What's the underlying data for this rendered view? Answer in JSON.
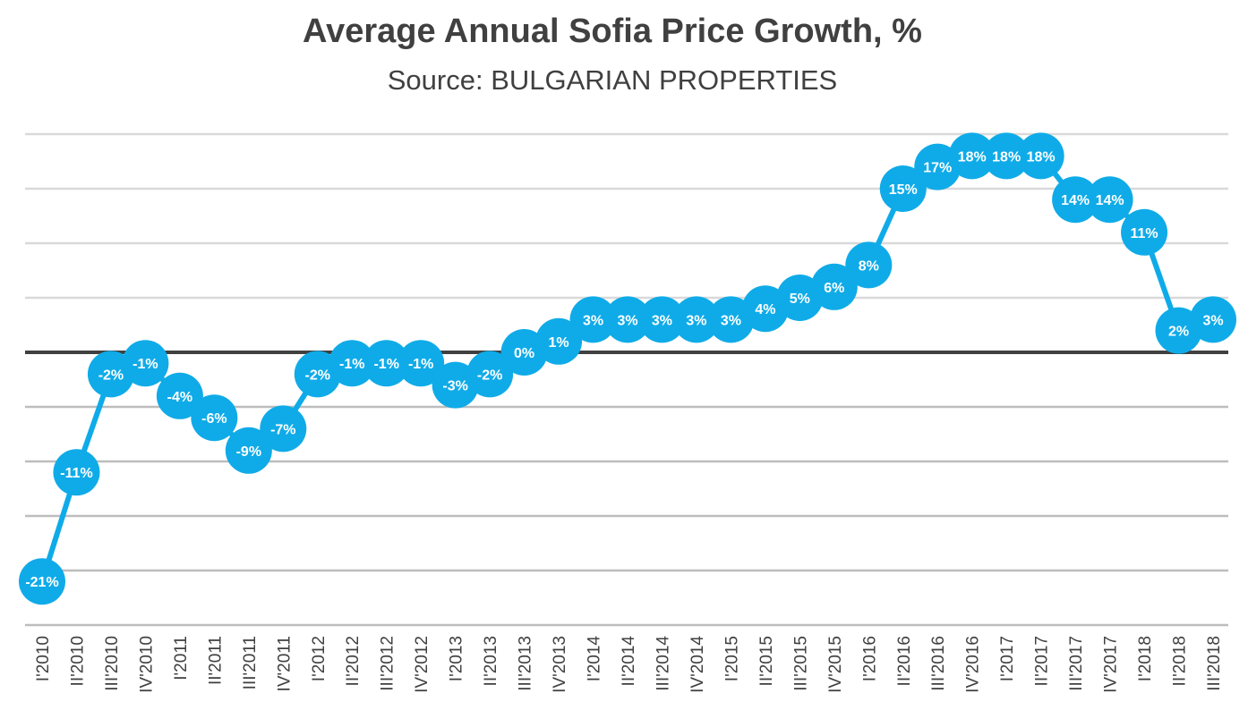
{
  "chart_data": {
    "type": "line",
    "title": "Average Annual Sofia Price Growth, %",
    "subtitle": "Source: BULGARIAN PROPERTIES",
    "xlabel": "",
    "ylabel": "",
    "ylim": [
      -25,
      20
    ],
    "grid": true,
    "legend": "none",
    "color": "#0fabe8",
    "categories": [
      "I'2010",
      "II'2010",
      "III'2010",
      "IV'2010",
      "I'2011",
      "II'2011",
      "III'2011",
      "IV'2011",
      "I'2012",
      "II'2012",
      "III'2012",
      "IV'2012",
      "I'2013",
      "II'2013",
      "III'2013",
      "IV'2013",
      "I'2014",
      "II'2014",
      "III'2014",
      "IV'2014",
      "I'2015",
      "II'2015",
      "III'2015",
      "IV'2015",
      "I'2016",
      "II'2016",
      "III'2016",
      "IV'2016",
      "I'2017",
      "II'2017",
      "III'2017",
      "IV'2017",
      "I'2018",
      "II'2018",
      "III'2018"
    ],
    "values": [
      -21,
      -11,
      -2,
      -1,
      -4,
      -6,
      -9,
      -7,
      -2,
      -1,
      -1,
      -1,
      -3,
      -2,
      0,
      1,
      3,
      3,
      3,
      3,
      3,
      4,
      5,
      6,
      8,
      15,
      17,
      18,
      18,
      18,
      14,
      14,
      11,
      2,
      3
    ],
    "data_labels": [
      "-21%",
      "-11%",
      "-2%",
      "-1%",
      "-4%",
      "-6%",
      "-9%",
      "-7%",
      "-2%",
      "-1%",
      "-1%",
      "-1%",
      "-3%",
      "-2%",
      "0%",
      "1%",
      "3%",
      "3%",
      "3%",
      "3%",
      "3%",
      "4%",
      "5%",
      "6%",
      "8%",
      "15%",
      "17%",
      "18%",
      "18%",
      "18%",
      "14%",
      "14%",
      "11%",
      "2%",
      "3%"
    ]
  }
}
